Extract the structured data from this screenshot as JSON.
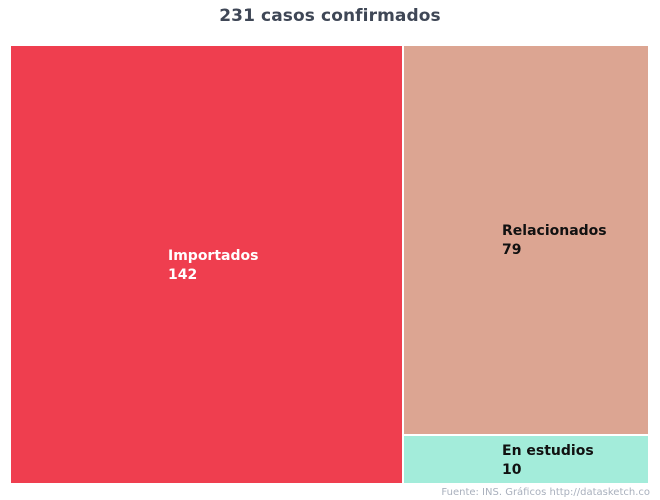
{
  "chart_data": {
    "type": "treemap",
    "title": "231 casos confirmados",
    "items": [
      {
        "name": "Importados",
        "value": 142,
        "color": "#ef3e4f",
        "label_color": "#ffffff"
      },
      {
        "name": "Relacionados",
        "value": 79,
        "color": "#dca592",
        "label_color": "#111111"
      },
      {
        "name": "En estudios",
        "value": 10,
        "color": "#a3ecda",
        "label_color": "#111111"
      }
    ],
    "source": "Fuente: INS. Gráficos http://datasketch.co"
  }
}
